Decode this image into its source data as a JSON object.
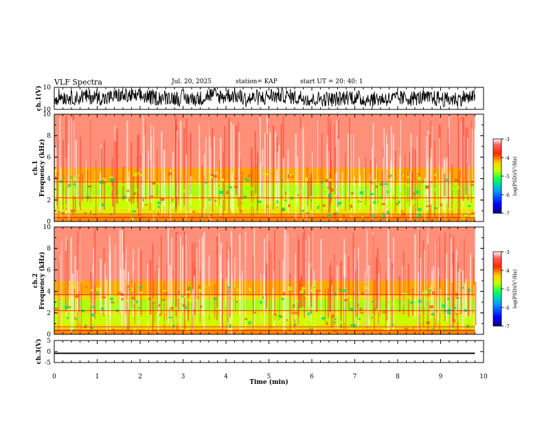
{
  "header": {
    "title": "VLF Spectra",
    "date": "Jul. 20, 2025",
    "station": "station= KAP",
    "start_ut": "start UT =  20: 40: 1"
  },
  "colors": {
    "background": "#ffffff",
    "axis": "#000000",
    "trace": "#000000",
    "colormap": [
      "#000070",
      "#0000ff",
      "#00a0ff",
      "#00ff60",
      "#c8ff00",
      "#ffd000",
      "#ff2a00",
      "#ffffff"
    ]
  },
  "chart_data": [
    {
      "type": "line",
      "name": "ch1-waveform",
      "ylabel": "ch.1(V)",
      "ylim": [
        -10,
        10
      ],
      "yticks": [
        10,
        -10
      ],
      "xlim": [
        0,
        10
      ],
      "data_span_min": [
        0,
        9.8
      ],
      "description_series": "noisy voltage oscillating roughly between -8 and +9 V"
    },
    {
      "type": "heatmap",
      "name": "ch1-spectrogram",
      "ylabel": "ch.1\nFrequency (kHz)",
      "ylim": [
        0,
        10
      ],
      "yticks": [
        0,
        2,
        4,
        6,
        8,
        10
      ],
      "xlim": [
        0,
        10
      ],
      "data_span_min": [
        0,
        9.8
      ],
      "colorbar": {
        "label": "log(PSD)(V²/Hz)",
        "range": [
          -7,
          -3
        ],
        "ticks": [
          -3,
          -4,
          -5,
          -6,
          -7
        ]
      },
      "bands_khz": [
        {
          "range": [
            5,
            10
          ],
          "log_psd": -3.3
        },
        {
          "range": [
            3.8,
            5
          ],
          "log_psd": -4.0
        },
        {
          "range": [
            3.4,
            3.8
          ],
          "log_psd": -4.3
        },
        {
          "range": [
            2.4,
            3.4
          ],
          "log_psd": -4.8
        },
        {
          "range": [
            2.0,
            2.4
          ],
          "log_psd": -4.4
        },
        {
          "range": [
            1.2,
            2.0
          ],
          "log_psd": -4.7
        },
        {
          "range": [
            0.6,
            1.2
          ],
          "log_psd": -4.4
        },
        {
          "range": [
            0,
            0.6
          ],
          "log_psd": -3.9
        }
      ]
    },
    {
      "type": "heatmap",
      "name": "ch2-spectrogram",
      "ylabel": "ch.2\nFrequency (kHz)",
      "ylim": [
        0,
        10
      ],
      "yticks": [
        0,
        2,
        4,
        6,
        8,
        10
      ],
      "xlim": [
        0,
        10
      ],
      "data_span_min": [
        0,
        9.8
      ],
      "colorbar": {
        "label": "log(PSD)(V²/Hz)",
        "range": [
          -7,
          -3
        ],
        "ticks": [
          -3,
          -4,
          -5,
          -6,
          -7
        ]
      },
      "bands_khz": [
        {
          "range": [
            5,
            10
          ],
          "log_psd": -3.3
        },
        {
          "range": [
            3.6,
            5
          ],
          "log_psd": -4.0
        },
        {
          "range": [
            3.2,
            3.6
          ],
          "log_psd": -4.3
        },
        {
          "range": [
            2.2,
            3.2
          ],
          "log_psd": -4.8
        },
        {
          "range": [
            1.8,
            2.2
          ],
          "log_psd": -4.4
        },
        {
          "range": [
            1.0,
            1.8
          ],
          "log_psd": -4.7
        },
        {
          "range": [
            0.5,
            1.0
          ],
          "log_psd": -4.4
        },
        {
          "range": [
            0,
            0.5
          ],
          "log_psd": -3.9
        }
      ]
    },
    {
      "type": "line",
      "name": "ch3-waveform",
      "ylabel": "ch.3(V)",
      "ylim": [
        -5,
        5
      ],
      "yticks": [
        5,
        0,
        -5
      ],
      "xlim": [
        0,
        10
      ],
      "data_span_min": [
        0,
        9.8
      ],
      "band_v": [
        -1.1,
        -0.5
      ]
    }
  ],
  "x_axis": {
    "label": "Time (min)",
    "ticks": [
      0,
      1,
      2,
      3,
      4,
      5,
      6,
      7,
      8,
      9,
      10
    ]
  }
}
